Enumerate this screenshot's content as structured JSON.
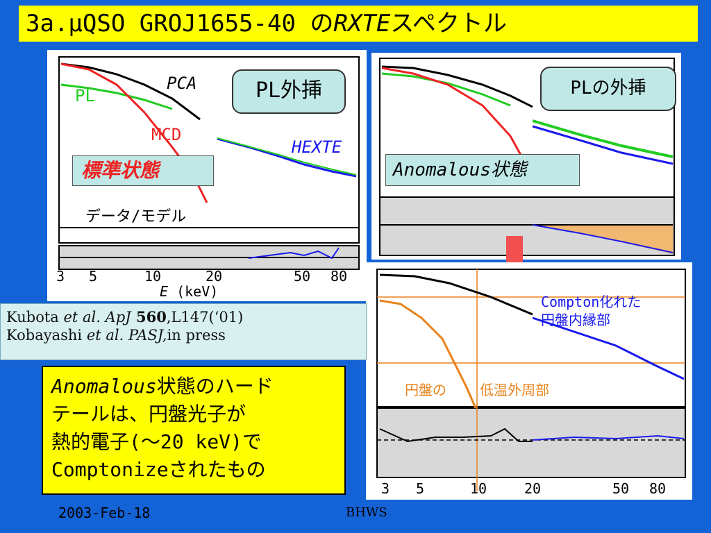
{
  "title": {
    "prefix": "3a.μQSO GROJ1655-40 の",
    "italic": "RXTE",
    "suffix": "スペクトル"
  },
  "left_panel": {
    "pca": "PCA",
    "pl": "PL",
    "mcd": "MCD",
    "hexte": "HEXTE",
    "callout": "PL外挿",
    "state": "標準状態",
    "ratio_label": "データ/モデル",
    "xticks": [
      "3",
      "5",
      "10",
      "20",
      "50",
      "80"
    ],
    "xlabel_italic": "E",
    "xlabel_unit": "(keV)"
  },
  "right_top_panel": {
    "callout": "PLの外挿",
    "state": "Anomalous状態"
  },
  "right_bottom_panel": {
    "compton_line1": "Compton化れた",
    "compton_line2": "円盤内縁部",
    "disk_label1": "円盤の",
    "disk_label2": "低温外周部",
    "xticks": [
      "3",
      "5",
      "10",
      "20",
      "50",
      "80"
    ]
  },
  "reference": {
    "line1_a": "Kubota ",
    "line1_b": "et al.",
    "line1_c": " ApJ",
    "line1_d": " 560",
    "line1_e": ",L147(‘01)",
    "line2_a": "Kobayashi ",
    "line2_b": "et al.",
    "line2_c": "  PASJ,",
    "line2_d": "in press"
  },
  "summary": {
    "italic": "Anomalous",
    "line1": "状態のハード",
    "line2": "テールは、円盤光子が",
    "line3": "熱的電子(～20 keV)で",
    "line4": "Comptonizeされたもの"
  },
  "footer": {
    "date": "2003-Feb-18",
    "workshop": "BHWS"
  },
  "colors": {
    "pca": "#000000",
    "pl": "#22cc22",
    "mcd": "#ee2222",
    "hexte": "#1a1aee",
    "disk": "#e8821a",
    "accent": "#1463d6"
  }
}
